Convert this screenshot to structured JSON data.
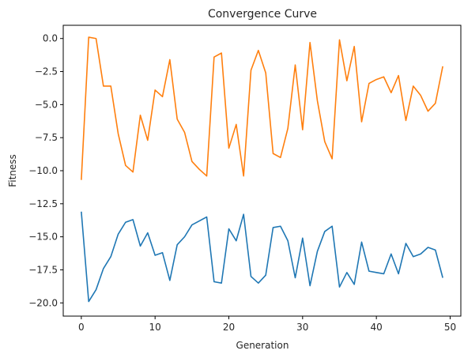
{
  "chart_data": {
    "type": "line",
    "title": "Convergence Curve",
    "xlabel": "Generation",
    "ylabel": "Fitness",
    "xlim": [
      -2.45,
      51.45
    ],
    "ylim": [
      -21.0,
      1.0
    ],
    "xticks": [
      0,
      10,
      20,
      30,
      40,
      50
    ],
    "yticks": [
      0.0,
      -2.5,
      -5.0,
      -7.5,
      -10.0,
      -12.5,
      -15.0,
      -17.5,
      -20.0
    ],
    "ytick_labels": [
      "0.0",
      "−2.5",
      "−5.0",
      "−7.5",
      "−10.0",
      "−12.5",
      "−15.0",
      "−17.5",
      "−20.0"
    ],
    "grid": false,
    "x": [
      0,
      1,
      2,
      3,
      4,
      5,
      6,
      7,
      8,
      9,
      10,
      11,
      12,
      13,
      14,
      15,
      16,
      17,
      18,
      19,
      20,
      21,
      22,
      23,
      24,
      25,
      26,
      27,
      28,
      29,
      30,
      31,
      32,
      33,
      34,
      35,
      36,
      37,
      38,
      39,
      40,
      41,
      42,
      43,
      44,
      45,
      46,
      47,
      48,
      49
    ],
    "series": [
      {
        "color": "#1f77b4",
        "values": [
          -13.1,
          -19.9,
          -19.0,
          -17.4,
          -16.5,
          -14.8,
          -13.9,
          -13.7,
          -15.7,
          -14.7,
          -16.4,
          -16.2,
          -18.3,
          -15.6,
          -15.0,
          -14.1,
          -13.8,
          -13.5,
          -18.4,
          -18.5,
          -14.4,
          -15.3,
          -13.3,
          -18.0,
          -18.5,
          -17.9,
          -14.3,
          -14.2,
          -15.3,
          -18.1,
          -15.1,
          -18.7,
          -16.1,
          -14.6,
          -14.2,
          -18.8,
          -17.7,
          -18.6,
          -15.4,
          -17.6,
          -17.7,
          -17.8,
          -16.3,
          -17.8,
          -15.5,
          -16.5,
          -16.3,
          -15.8,
          -16.0,
          -18.1
        ]
      },
      {
        "color": "#ff7f0e",
        "values": [
          -10.7,
          0.1,
          0.0,
          -3.6,
          -3.6,
          -7.2,
          -9.6,
          -10.1,
          -5.8,
          -7.7,
          -3.9,
          -4.4,
          -1.6,
          -6.1,
          -7.1,
          -9.3,
          -9.9,
          -10.4,
          -1.4,
          -1.1,
          -8.3,
          -6.5,
          -10.4,
          -2.4,
          -0.9,
          -2.6,
          -8.7,
          -9.0,
          -6.8,
          -2.0,
          -6.9,
          -0.3,
          -4.7,
          -7.8,
          -9.1,
          -0.1,
          -3.2,
          -0.6,
          -6.3,
          -3.4,
          -3.1,
          -2.9,
          -4.1,
          -2.8,
          -6.2,
          -3.6,
          -4.3,
          -5.5,
          -4.9,
          -2.1
        ]
      }
    ]
  }
}
